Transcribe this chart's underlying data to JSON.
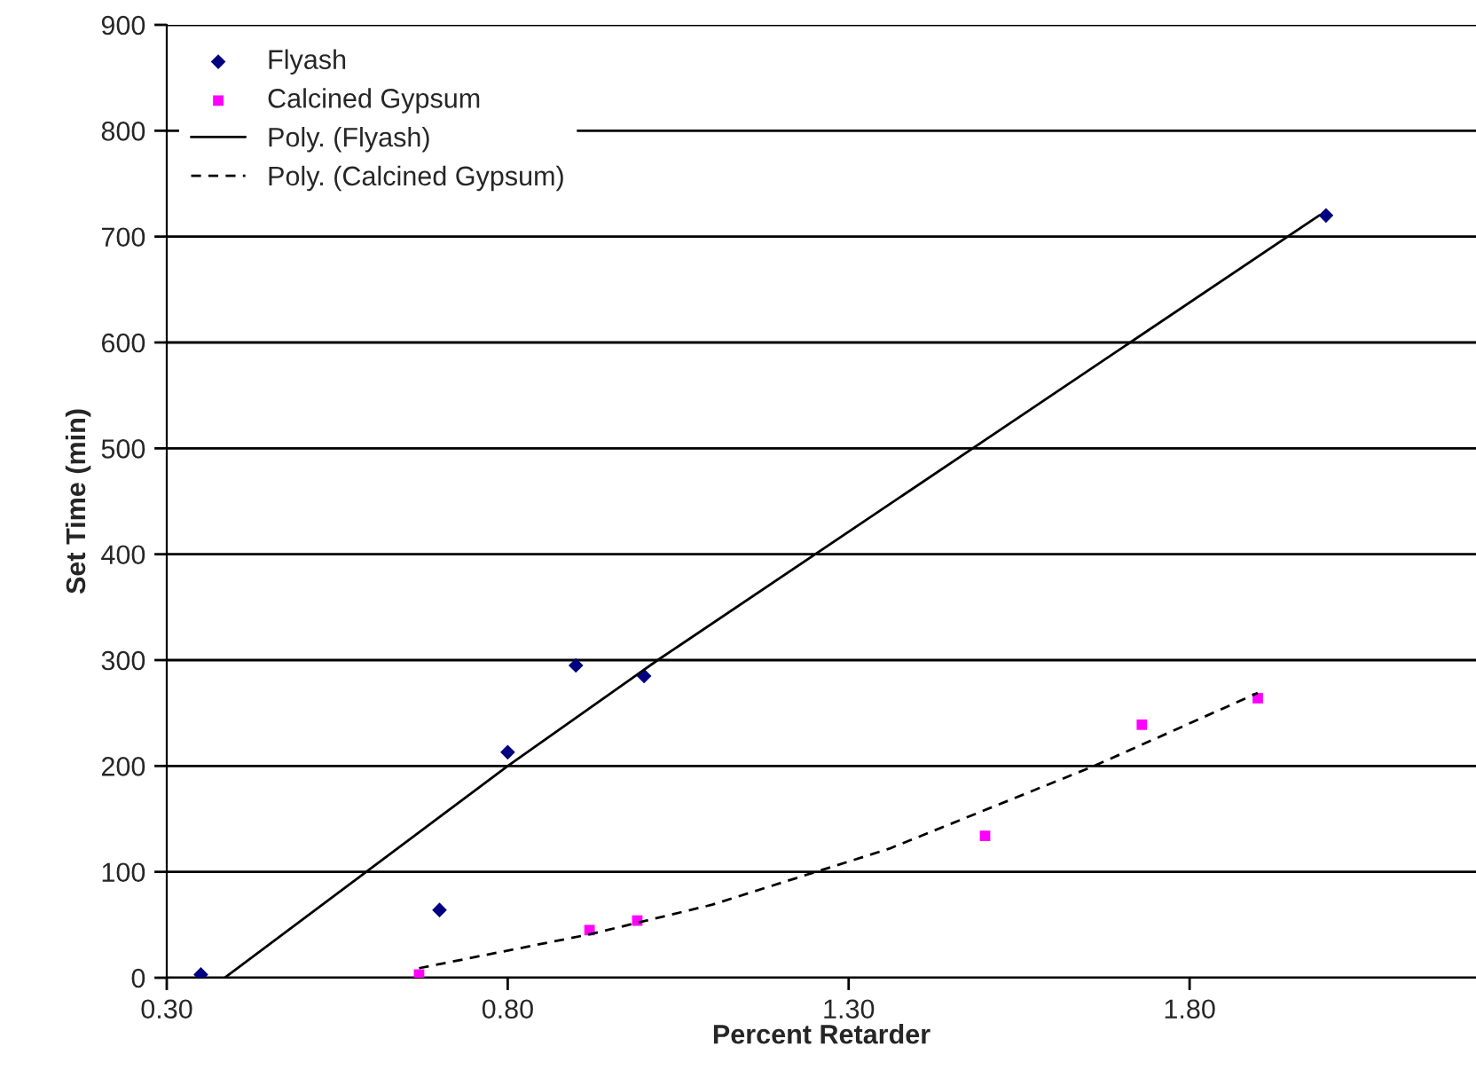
{
  "chart_data": {
    "type": "scatter",
    "xlabel": "Percent Retarder",
    "ylabel": "Set Time (min)",
    "xlim": [
      0.3,
      2.22
    ],
    "xticks": [
      {
        "value": 0.3,
        "label": "0.30"
      },
      {
        "value": 0.8,
        "label": "0.80"
      },
      {
        "value": 1.3,
        "label": "1.30"
      },
      {
        "value": 1.8,
        "label": "1.80"
      }
    ],
    "ylim": [
      0,
      900
    ],
    "yticks": [
      0,
      100,
      200,
      300,
      400,
      500,
      600,
      700,
      800,
      900
    ],
    "grid": "y",
    "legend": "top left",
    "series": [
      {
        "name": "Flyash",
        "marker": "diamond",
        "color": "#000080",
        "x": [
          0.35,
          0.7,
          0.8,
          0.9,
          1.0,
          2.0
        ],
        "values": [
          3,
          64,
          213,
          295,
          285,
          720
        ]
      },
      {
        "name": "Calcined Gypsum",
        "marker": "square",
        "color": "#ff00ff",
        "x": [
          0.67,
          0.92,
          0.99,
          1.5,
          1.73,
          1.9
        ],
        "values": [
          3,
          45,
          54,
          134,
          239,
          264
        ]
      },
      {
        "name": "Poly. (Flyash)",
        "type": "line",
        "line_style": "solid",
        "color": "#000000",
        "x": [
          0.385,
          0.8,
          1.02,
          1.99
        ],
        "values": [
          0,
          200,
          300,
          720
        ]
      },
      {
        "name": "Poly. (Calcined Gypsum)",
        "type": "line",
        "line_style": "dashed",
        "color": "#000000",
        "x": [
          0.67,
          0.92,
          1.1,
          1.36,
          1.66,
          1.9
        ],
        "values": [
          9,
          41,
          69,
          122,
          200,
          269
        ]
      }
    ]
  }
}
